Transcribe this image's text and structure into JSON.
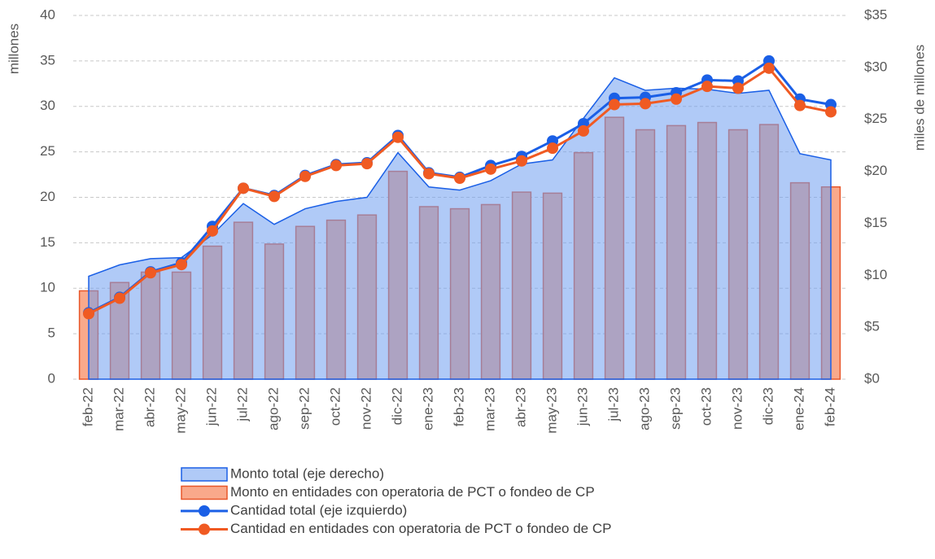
{
  "chart_data": {
    "type": "combo",
    "y_label": "millones",
    "y2_label": "miles de millones",
    "categories": [
      "feb-22",
      "mar-22",
      "abr-22",
      "may-22",
      "jun-22",
      "jul-22",
      "ago-22",
      "sep-22",
      "oct-22",
      "nov-22",
      "dic-22",
      "ene-23",
      "feb-23",
      "mar-23",
      "abr-23",
      "may-23",
      "jun-23",
      "jul-23",
      "ago-23",
      "sep-23",
      "oct-23",
      "nov-23",
      "dic-23",
      "ene-24",
      "feb-24"
    ],
    "ylim": [
      0,
      40
    ],
    "yticks": [
      0,
      5,
      10,
      15,
      20,
      25,
      30,
      35,
      40
    ],
    "y2lim": [
      0,
      35
    ],
    "y2ticks": [
      {
        "value": 0,
        "label": "$0"
      },
      {
        "value": 5,
        "label": "$5"
      },
      {
        "value": 10,
        "label": "$10"
      },
      {
        "value": 15,
        "label": "$15"
      },
      {
        "value": 20,
        "label": "$20"
      },
      {
        "value": 25,
        "label": "$25"
      },
      {
        "value": 30,
        "label": "$30"
      },
      {
        "value": 35,
        "label": "$35"
      }
    ],
    "grid": true,
    "series": [
      {
        "name": "Monto en entidades con operatoria de PCT o fondeo de CP",
        "type": "bar",
        "axis": "y2",
        "color": "#f9a98b",
        "edge": "#e8572a",
        "values": [
          8.5,
          9.3,
          10.3,
          10.3,
          12.8,
          15.1,
          13.0,
          14.7,
          15.3,
          15.8,
          20.0,
          16.6,
          16.4,
          16.8,
          18.0,
          17.9,
          21.8,
          25.2,
          24.0,
          24.4,
          24.7,
          24.0,
          24.5,
          18.9,
          18.5
        ]
      },
      {
        "name": "Monto total (eje derecho)",
        "type": "area",
        "axis": "y2",
        "color": "#6f9ef0",
        "edge": "#1a5fe6",
        "values": [
          9.9,
          11.0,
          11.6,
          11.7,
          13.9,
          16.9,
          14.9,
          16.4,
          17.1,
          17.5,
          21.8,
          18.5,
          18.2,
          19.1,
          20.7,
          21.1,
          25.1,
          29.0,
          27.8,
          28.0,
          27.9,
          27.5,
          27.8,
          21.7,
          21.1
        ]
      },
      {
        "name": "Cantidad total (eje izquierdo)",
        "type": "line",
        "color": "#1a5fe6",
        "values": [
          7.3,
          9.0,
          11.8,
          12.8,
          16.8,
          21.0,
          20.2,
          22.4,
          23.6,
          23.8,
          26.8,
          22.7,
          22.2,
          23.5,
          24.5,
          26.2,
          28.1,
          30.9,
          31.0,
          31.5,
          32.9,
          32.8,
          35.0,
          30.8,
          30.2
        ]
      },
      {
        "name": "Cantidad en entidades con operatoria de PCT o fondeo de CP",
        "type": "line",
        "color": "#f05a22",
        "values": [
          7.2,
          8.9,
          11.7,
          12.6,
          16.3,
          21.0,
          20.1,
          22.3,
          23.5,
          23.7,
          26.6,
          22.6,
          22.1,
          23.1,
          24.0,
          25.4,
          27.3,
          30.2,
          30.3,
          30.8,
          32.2,
          32.0,
          34.2,
          30.1,
          29.4
        ]
      }
    ],
    "legend_order": [
      1,
      0,
      2,
      3
    ]
  }
}
